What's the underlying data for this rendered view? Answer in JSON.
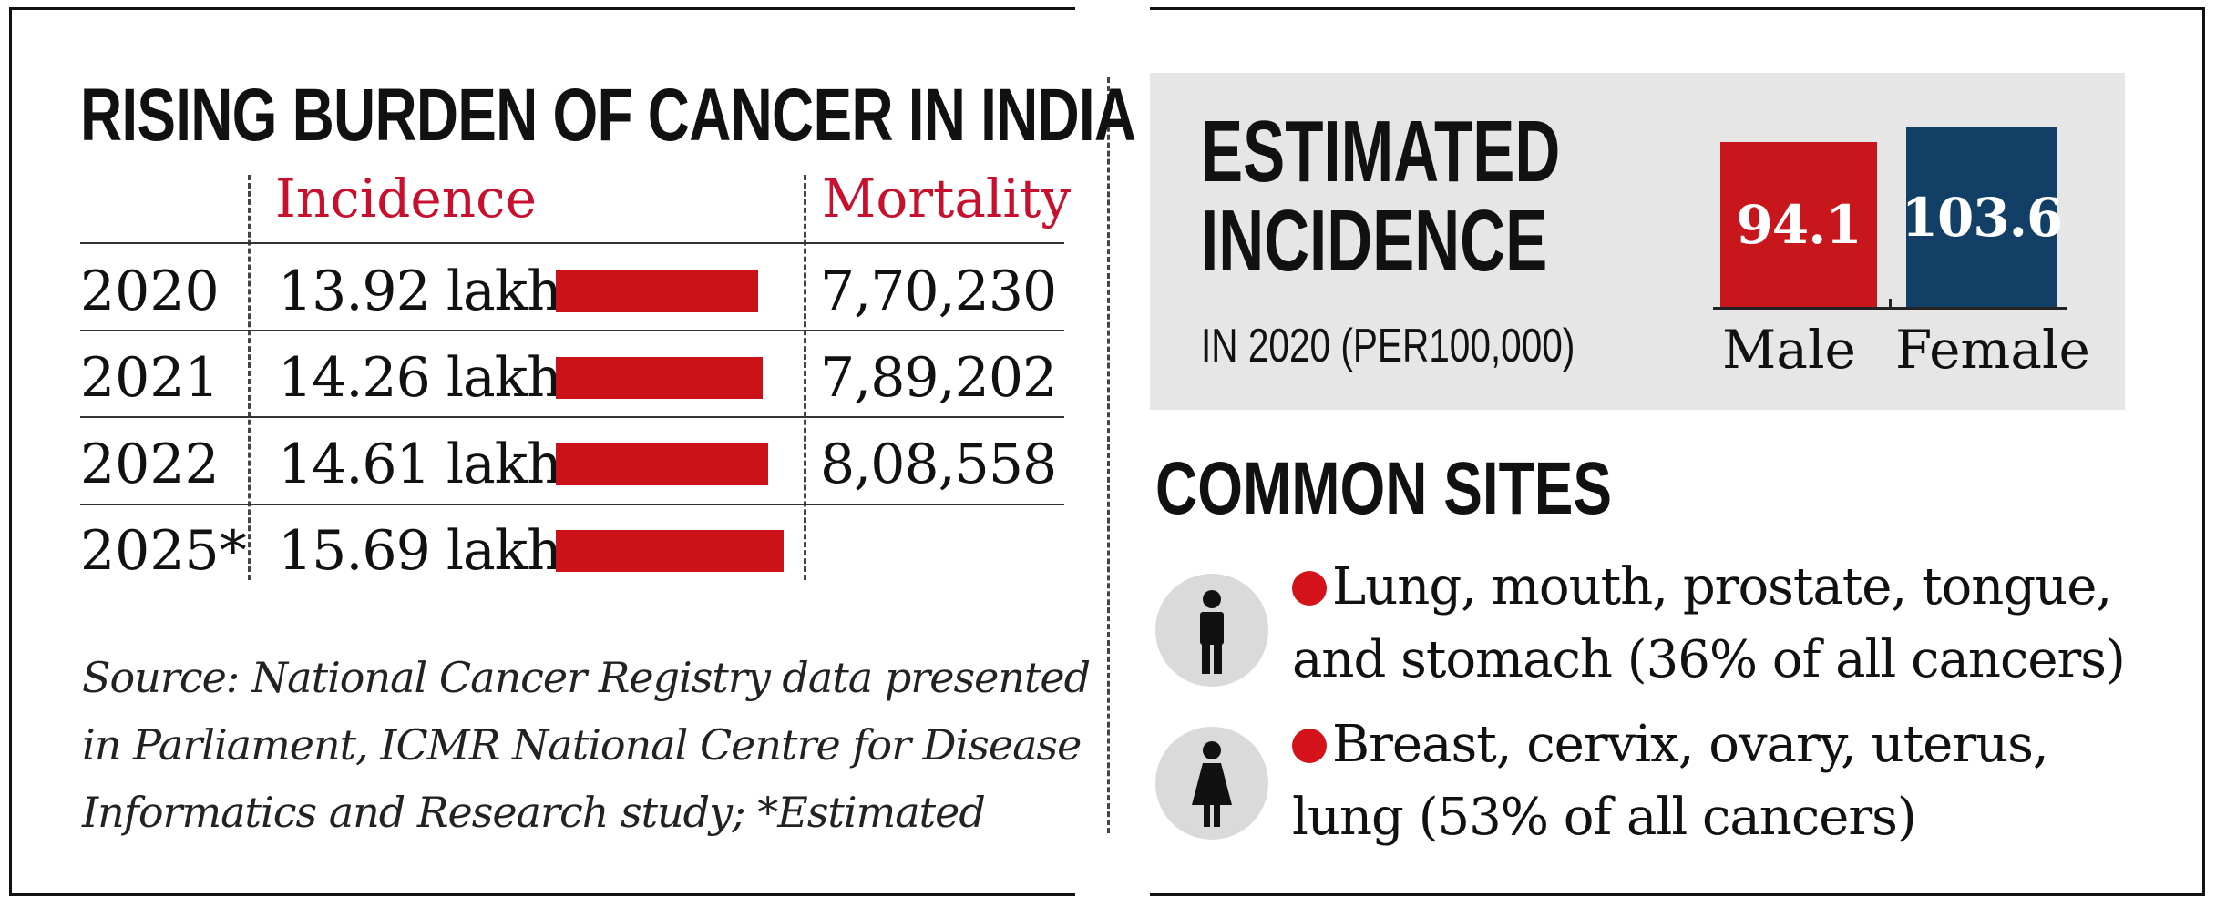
{
  "left": {
    "title": "RISING BURDEN OF CANCER IN INDIA",
    "col_incidence": "Incidence",
    "col_mortality": "Mortality",
    "source_lines": [
      "Source: National Cancer Registry data presented",
      "in Parliament, ICMR National Centre for Disease",
      "Informatics and Research study; *Estimated"
    ]
  },
  "right": {
    "est_title_1": "ESTIMATED",
    "est_title_2": "INCIDENCE",
    "est_sub": "IN 2020 (PER100,000)",
    "male_label": "Male",
    "female_label": "Female",
    "common_title": "COMMON SITES",
    "male_sites_1": "Lung, mouth, prostate, tongue,",
    "male_sites_2": "and stomach (36% of all cancers)",
    "female_sites_1": "Breast, cervix, ovary, uterus,",
    "female_sites_2": "lung (53% of all cancers)"
  },
  "colors": {
    "accent_red": "#cc1219",
    "male_box": "#c8161d",
    "female_box": "#123f66",
    "panel_bg": "#e6e6e6"
  },
  "chart_data": [
    {
      "type": "bar",
      "title": "RISING BURDEN OF CANCER IN INDIA",
      "categories": [
        "2020",
        "2021",
        "2022",
        "2025*"
      ],
      "series": [
        {
          "name": "Incidence",
          "values": [
            13.92,
            14.26,
            14.61,
            15.69
          ],
          "labels": [
            "13.92 lakh",
            "14.26 lakh",
            "14.61 lakh",
            "15.69 lakh"
          ]
        },
        {
          "name": "Mortality",
          "labels": [
            "7,70,230",
            "7,89,202",
            "8,08,558",
            ""
          ]
        }
      ]
    },
    {
      "type": "bar",
      "title": "ESTIMATED INCIDENCE",
      "categories": [
        "Male",
        "Female"
      ],
      "values": [
        94.1,
        103.6
      ],
      "labels": [
        "94.1",
        "103.6"
      ]
    }
  ]
}
